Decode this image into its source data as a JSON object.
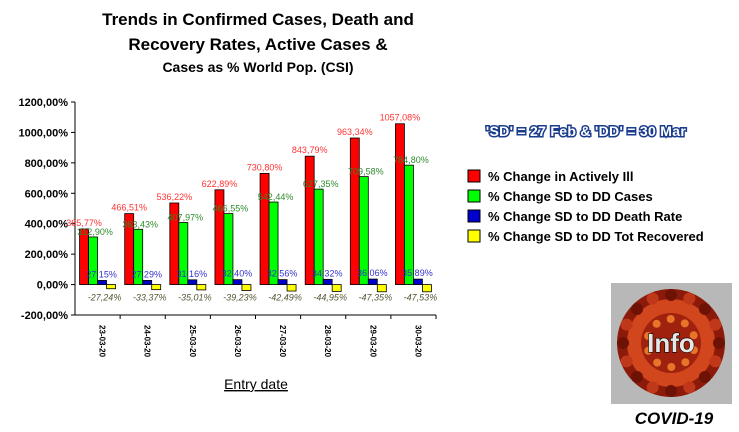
{
  "chart_data": {
    "type": "bar",
    "title_lines": [
      "Trends in Confirmed Cases, Death and",
      "Recovery Rates, Active Cases &",
      "Cases as % World Pop. (CSI)"
    ],
    "xlabel": "Entry date",
    "ylabel": "",
    "ylim": [
      -200,
      1200
    ],
    "yticks": [
      "1200,00%",
      "1000,00%",
      "800,00%",
      "600,00%",
      "400,00%",
      "200,00%",
      "0,00%",
      "-200,00%"
    ],
    "categories": [
      "23-03-20",
      "24-03-20",
      "25-03-20",
      "26-03-20",
      "27-03-20",
      "28-03-20",
      "29-03-20",
      "30-03-20"
    ],
    "series": [
      {
        "name": "% Change in Actively Ill",
        "color": "#ff0000",
        "label_color": "#ff3333",
        "values": [
          365.77,
          466.51,
          536.22,
          622.89,
          730.8,
          843.79,
          963.34,
          1057.08
        ],
        "labels": [
          "365,77%",
          "466,51%",
          "536,22%",
          "622,89%",
          "730,80%",
          "843,79%",
          "963,34%",
          "1057,08%"
        ]
      },
      {
        "name": "% Change SD to DD Cases",
        "color": "#00ff00",
        "label_color": "#2e8b2e",
        "values": [
          312.9,
          363.43,
          407.97,
          466.55,
          542.44,
          627.35,
          709.58,
          784.8
        ],
        "labels": [
          "312,90%",
          "363,43%",
          "407,97%",
          "466,55%",
          "542,44%",
          "627,35%",
          "709,58%",
          "784,80%"
        ]
      },
      {
        "name": "% Change SD to DD Death Rate",
        "color": "#0000cc",
        "label_color": "#3333cc",
        "values": [
          27.15,
          27.29,
          31.16,
          32.4,
          32.56,
          34.32,
          36.06,
          35.89
        ],
        "labels": [
          "27,15%",
          "27,29%",
          "31,16%",
          "32,40%",
          "32,56%",
          "34,32%",
          "36,06%",
          "35,89%"
        ]
      },
      {
        "name": "% Change SD to DD Tot Recovered",
        "color": "#ffff00",
        "label_color": "#555533",
        "values": [
          -27.24,
          -33.37,
          -35.01,
          -39.23,
          -42.49,
          -44.95,
          -47.35,
          -47.53
        ],
        "labels": [
          "-27,24%",
          "-33,37%",
          "-35,01%",
          "-39,23%",
          "-42,49%",
          "-44,95%",
          "-47,35%",
          "-47,53%"
        ]
      }
    ],
    "legend_position": "right",
    "grid": false
  },
  "annotation": "'SD' = 27 Feb & 'DD' = 30 Mar",
  "logo": {
    "text": "Info"
  },
  "caption": "COVID-19"
}
